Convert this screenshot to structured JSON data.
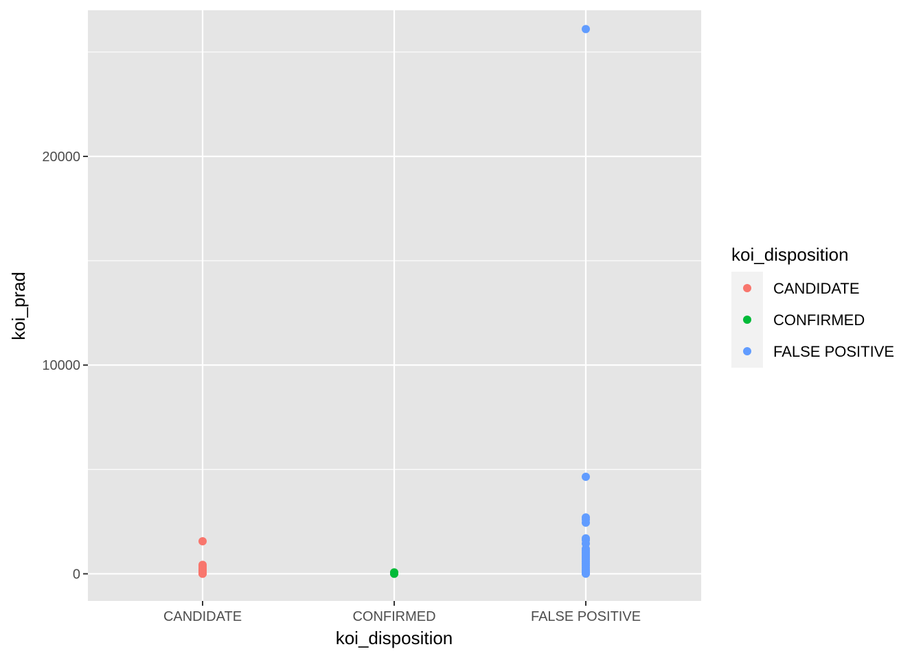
{
  "chart_data": {
    "type": "scatter",
    "title": "",
    "xlabel": "koi_disposition",
    "ylabel": "koi_prad",
    "categories": [
      "CANDIDATE",
      "CONFIRMED",
      "FALSE POSITIVE"
    ],
    "ylim": [
      -1300,
      27000
    ],
    "yticks": [
      0,
      10000,
      20000
    ],
    "y_minor_gridlines": [
      5000,
      15000,
      25000
    ],
    "grid": true,
    "legend": {
      "title": "koi_disposition",
      "position": "right",
      "entries": [
        "CANDIDATE",
        "CONFIRMED",
        "FALSE POSITIVE"
      ]
    },
    "colors": {
      "CANDIDATE": "#F8766D",
      "CONFIRMED": "#00BA38",
      "FALSE POSITIVE": "#619CFF",
      "panel_background": "#E5E5E5",
      "gridline": "#FFFFFF"
    },
    "series": [
      {
        "name": "CANDIDATE",
        "x": "CANDIDATE",
        "values": [
          1560,
          430,
          350,
          260,
          200,
          150,
          110,
          80,
          60,
          40,
          25,
          15,
          8,
          3
        ]
      },
      {
        "name": "CONFIRMED",
        "x": "CONFIRMED",
        "values": [
          70,
          50,
          35,
          25,
          15,
          8,
          3
        ]
      },
      {
        "name": "FALSE POSITIVE",
        "x": "FALSE POSITIVE",
        "values": [
          26100,
          4650,
          2700,
          2600,
          2450,
          1700,
          1620,
          1450,
          1200,
          1100,
          1000,
          900,
          800,
          700,
          600,
          500,
          400,
          300,
          200,
          120,
          60,
          20,
          5
        ]
      }
    ]
  }
}
